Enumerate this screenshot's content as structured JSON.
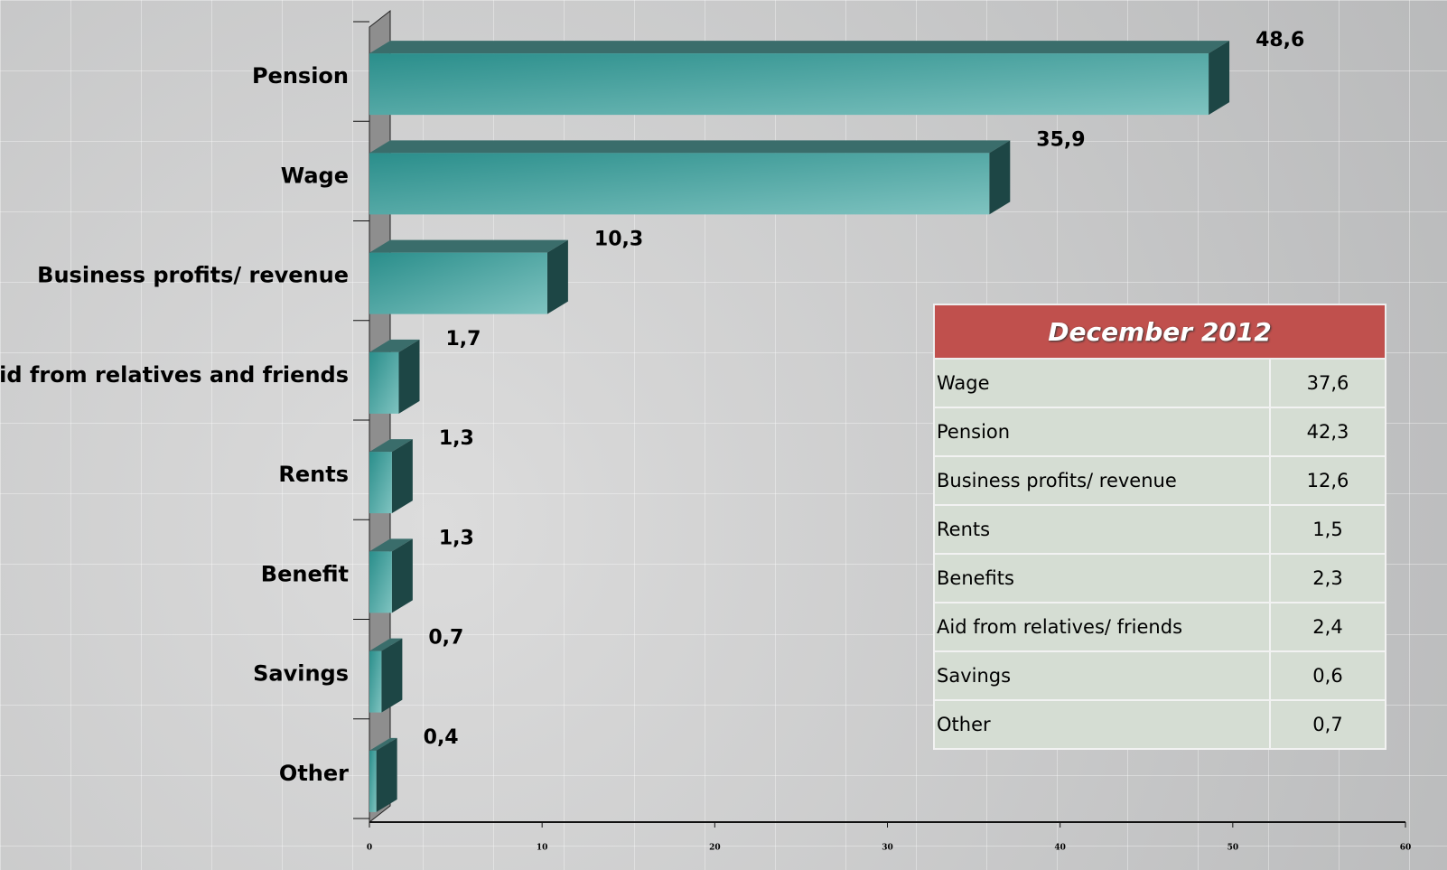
{
  "chart_data": {
    "type": "bar",
    "orientation": "horizontal",
    "categories": [
      "Pension",
      "Wage",
      "Business profits/ revenue",
      "Aid from relatives and friends",
      "Rents",
      "Benefit",
      "Savings",
      "Other"
    ],
    "values": [
      48.6,
      35.9,
      10.3,
      1.7,
      1.3,
      1.3,
      0.7,
      0.4
    ],
    "value_labels": [
      "48,6",
      "35,9",
      "10,3",
      "1,7",
      "1,3",
      "1,3",
      "0,7",
      "0,4"
    ],
    "color": "#2a8e8b",
    "xlim": [
      0,
      60
    ],
    "xticks": [
      0,
      10,
      20,
      30,
      40,
      50,
      60
    ],
    "grid": false
  },
  "table": {
    "title": "December 2012",
    "rows": [
      [
        "Wage",
        "37,6"
      ],
      [
        "Pension",
        "42,3"
      ],
      [
        "Business profits/ revenue",
        "12,6"
      ],
      [
        "Rents",
        "1,5"
      ],
      [
        "Benefits",
        "2,3"
      ],
      [
        "Aid from relatives/ friends",
        "2,4"
      ],
      [
        "Savings",
        "0,6"
      ],
      [
        "Other",
        "0,7"
      ]
    ]
  }
}
